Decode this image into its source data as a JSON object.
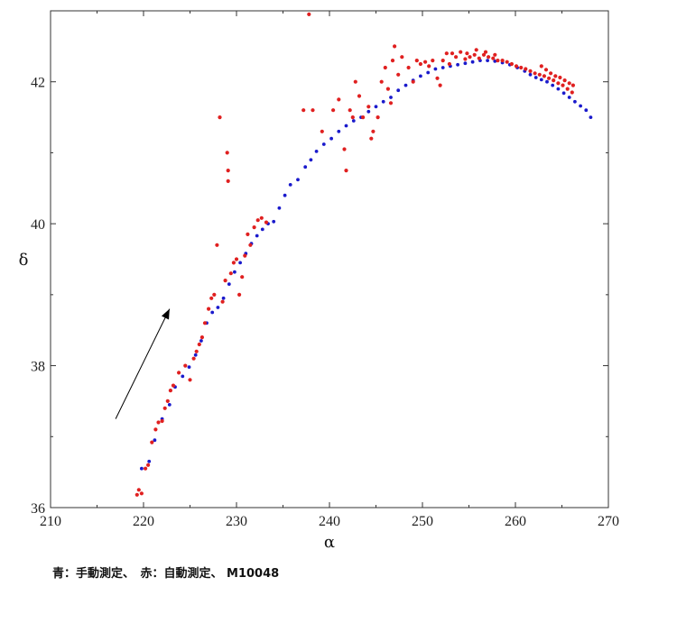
{
  "chart_data": {
    "type": "scatter",
    "xlabel": "α",
    "ylabel": "δ",
    "xlim": [
      210,
      270
    ],
    "ylim": [
      36,
      43
    ],
    "xticks": [
      210,
      220,
      230,
      240,
      250,
      260,
      270
    ],
    "yticks": [
      36,
      38,
      40,
      42
    ],
    "grid": false,
    "series": [
      {
        "color": "#1a1acc",
        "points": [
          [
            219.8,
            36.55
          ],
          [
            220.6,
            36.65
          ],
          [
            221.2,
            36.95
          ],
          [
            222.0,
            37.25
          ],
          [
            222.8,
            37.45
          ],
          [
            223.4,
            37.7
          ],
          [
            224.2,
            37.85
          ],
          [
            224.9,
            37.98
          ],
          [
            225.6,
            38.15
          ],
          [
            226.2,
            38.35
          ],
          [
            226.8,
            38.6
          ],
          [
            227.4,
            38.75
          ],
          [
            228.0,
            38.82
          ],
          [
            228.6,
            38.95
          ],
          [
            229.2,
            39.15
          ],
          [
            229.8,
            39.32
          ],
          [
            230.4,
            39.45
          ],
          [
            231.0,
            39.58
          ],
          [
            231.6,
            39.72
          ],
          [
            232.2,
            39.83
          ],
          [
            232.8,
            39.92
          ],
          [
            233.4,
            40.0
          ],
          [
            234.0,
            40.03
          ],
          [
            234.6,
            40.22
          ],
          [
            235.2,
            40.4
          ],
          [
            235.8,
            40.55
          ],
          [
            236.6,
            40.62
          ],
          [
            237.4,
            40.8
          ],
          [
            238.0,
            40.9
          ],
          [
            238.6,
            41.02
          ],
          [
            239.4,
            41.12
          ],
          [
            240.2,
            41.2
          ],
          [
            241.0,
            41.3
          ],
          [
            241.8,
            41.38
          ],
          [
            242.6,
            41.45
          ],
          [
            243.4,
            41.5
          ],
          [
            244.2,
            41.58
          ],
          [
            245.0,
            41.65
          ],
          [
            245.8,
            41.72
          ],
          [
            246.6,
            41.78
          ],
          [
            247.4,
            41.88
          ],
          [
            248.2,
            41.95
          ],
          [
            249.0,
            42.02
          ],
          [
            249.8,
            42.08
          ],
          [
            250.6,
            42.13
          ],
          [
            251.4,
            42.18
          ],
          [
            252.2,
            42.2
          ],
          [
            253.0,
            42.22
          ],
          [
            253.8,
            42.24
          ],
          [
            254.6,
            42.26
          ],
          [
            255.4,
            42.28
          ],
          [
            256.2,
            42.3
          ],
          [
            257.0,
            42.3
          ],
          [
            257.8,
            42.29
          ],
          [
            258.6,
            42.27
          ],
          [
            259.4,
            42.24
          ],
          [
            260.2,
            42.2
          ],
          [
            261.0,
            42.15
          ],
          [
            261.6,
            42.1
          ],
          [
            262.2,
            42.06
          ],
          [
            262.8,
            42.03
          ],
          [
            263.4,
            42.0
          ],
          [
            264.0,
            41.95
          ],
          [
            264.6,
            41.9
          ],
          [
            265.2,
            41.84
          ],
          [
            265.8,
            41.78
          ],
          [
            266.4,
            41.72
          ],
          [
            267.0,
            41.66
          ],
          [
            267.6,
            41.6
          ],
          [
            268.1,
            41.5
          ]
        ]
      },
      {
        "color": "#e02020",
        "points": [
          [
            219.3,
            36.18
          ],
          [
            219.5,
            36.25
          ],
          [
            219.8,
            36.2
          ],
          [
            220.2,
            36.55
          ],
          [
            220.5,
            36.6
          ],
          [
            220.9,
            36.92
          ],
          [
            221.3,
            37.1
          ],
          [
            221.6,
            37.2
          ],
          [
            222.0,
            37.22
          ],
          [
            222.3,
            37.4
          ],
          [
            222.6,
            37.5
          ],
          [
            222.9,
            37.65
          ],
          [
            223.2,
            37.72
          ],
          [
            223.8,
            37.9
          ],
          [
            224.5,
            38.0
          ],
          [
            225.0,
            37.8
          ],
          [
            225.4,
            38.1
          ],
          [
            225.7,
            38.2
          ],
          [
            226.0,
            38.3
          ],
          [
            226.3,
            38.4
          ],
          [
            226.6,
            38.6
          ],
          [
            227.0,
            38.8
          ],
          [
            227.3,
            38.95
          ],
          [
            227.6,
            39.0
          ],
          [
            227.9,
            39.7
          ],
          [
            228.2,
            41.5
          ],
          [
            228.5,
            38.9
          ],
          [
            228.8,
            39.2
          ],
          [
            229.0,
            41.0
          ],
          [
            229.1,
            40.6
          ],
          [
            229.1,
            40.75
          ],
          [
            229.4,
            39.3
          ],
          [
            229.7,
            39.45
          ],
          [
            230.0,
            39.5
          ],
          [
            230.3,
            39.0
          ],
          [
            230.6,
            39.25
          ],
          [
            230.9,
            39.55
          ],
          [
            231.2,
            39.85
          ],
          [
            231.5,
            39.7
          ],
          [
            231.9,
            39.95
          ],
          [
            232.3,
            40.05
          ],
          [
            232.7,
            40.08
          ],
          [
            233.2,
            40.02
          ],
          [
            237.2,
            41.6
          ],
          [
            237.8,
            42.95
          ],
          [
            238.2,
            41.6
          ],
          [
            239.2,
            41.3
          ],
          [
            240.4,
            41.6
          ],
          [
            241.0,
            41.75
          ],
          [
            241.6,
            41.05
          ],
          [
            241.8,
            40.75
          ],
          [
            242.2,
            41.6
          ],
          [
            242.5,
            41.5
          ],
          [
            242.8,
            42.0
          ],
          [
            243.2,
            41.8
          ],
          [
            243.6,
            41.5
          ],
          [
            244.2,
            41.65
          ],
          [
            244.5,
            41.2
          ],
          [
            244.7,
            41.3
          ],
          [
            245.2,
            41.5
          ],
          [
            245.6,
            42.0
          ],
          [
            246.0,
            42.2
          ],
          [
            246.3,
            41.9
          ],
          [
            246.6,
            41.7
          ],
          [
            246.8,
            42.3
          ],
          [
            247.0,
            42.5
          ],
          [
            247.4,
            42.1
          ],
          [
            247.8,
            42.35
          ],
          [
            248.5,
            42.2
          ],
          [
            249.0,
            42.0
          ],
          [
            249.4,
            42.3
          ],
          [
            249.8,
            42.25
          ],
          [
            250.3,
            42.28
          ],
          [
            250.7,
            42.22
          ],
          [
            251.1,
            42.3
          ],
          [
            251.6,
            42.05
          ],
          [
            251.9,
            41.95
          ],
          [
            252.2,
            42.3
          ],
          [
            252.6,
            42.4
          ],
          [
            252.9,
            42.25
          ],
          [
            253.2,
            42.4
          ],
          [
            253.6,
            42.35
          ],
          [
            254.1,
            42.42
          ],
          [
            254.6,
            42.32
          ],
          [
            255.1,
            42.35
          ],
          [
            255.6,
            42.38
          ],
          [
            256.1,
            42.33
          ],
          [
            256.6,
            42.38
          ],
          [
            257.1,
            42.35
          ],
          [
            257.6,
            42.33
          ],
          [
            258.1,
            42.3
          ],
          [
            258.6,
            42.3
          ],
          [
            259.1,
            42.28
          ],
          [
            259.6,
            42.25
          ],
          [
            260.1,
            42.22
          ],
          [
            260.6,
            42.2
          ],
          [
            261.1,
            42.18
          ],
          [
            261.6,
            42.15
          ],
          [
            262.1,
            42.12
          ],
          [
            262.6,
            42.1
          ],
          [
            263.1,
            42.08
          ],
          [
            263.6,
            42.05
          ],
          [
            264.1,
            42.02
          ],
          [
            264.6,
            41.98
          ],
          [
            265.1,
            41.95
          ],
          [
            265.6,
            41.9
          ],
          [
            266.1,
            41.85
          ],
          [
            262.8,
            42.22
          ],
          [
            263.3,
            42.17
          ],
          [
            263.8,
            42.12
          ],
          [
            264.3,
            42.08
          ],
          [
            264.8,
            42.06
          ],
          [
            265.3,
            42.02
          ],
          [
            265.8,
            41.98
          ],
          [
            266.2,
            41.95
          ],
          [
            254.8,
            42.4
          ],
          [
            255.8,
            42.45
          ],
          [
            256.8,
            42.42
          ],
          [
            257.8,
            42.38
          ]
        ]
      }
    ],
    "arrow": {
      "from": [
        217.0,
        37.25
      ],
      "to": [
        222.8,
        38.8
      ]
    }
  },
  "caption": "青：手動測定、　赤：自動測定、 M10048"
}
